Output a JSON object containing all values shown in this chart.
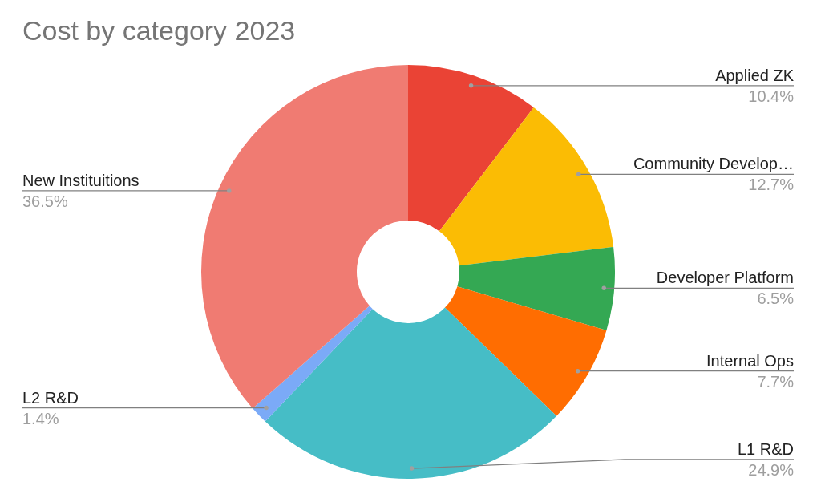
{
  "chart_data": {
    "type": "donut",
    "title": "Cost by category 2023",
    "categories": [
      "Applied ZK",
      "Community Develop…",
      "Developer Platform",
      "Internal Ops",
      "L1 R&D",
      "L2 R&D",
      "New Instituitions"
    ],
    "values": [
      10.4,
      12.7,
      6.5,
      7.7,
      24.9,
      1.4,
      36.5
    ],
    "colors": [
      "#ea4335",
      "#fbbc04",
      "#34a853",
      "#ff6d01",
      "#46bdc6",
      "#7baaf7",
      "#f07b72"
    ],
    "value_labels": [
      "10.4%",
      "12.7%",
      "6.5%",
      "7.7%",
      "24.9%",
      "1.4%",
      "36.5%"
    ]
  }
}
